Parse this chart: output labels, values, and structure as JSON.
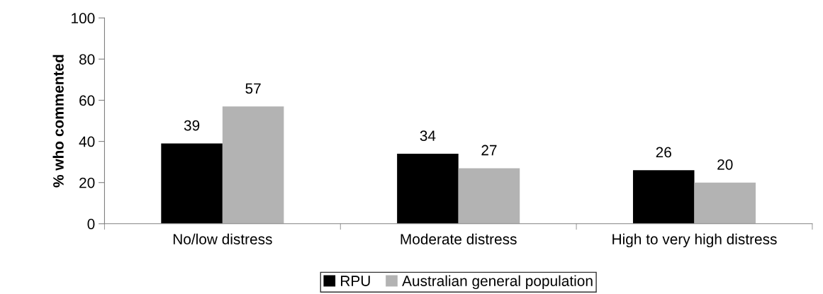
{
  "chart_data": {
    "type": "bar",
    "ylabel": "% who commented",
    "categories": [
      "No/low distress",
      "Moderate distress",
      "High to very high distress"
    ],
    "series": [
      {
        "name": "RPU",
        "color": "#000000",
        "values": [
          39,
          34,
          26
        ]
      },
      {
        "name": "Australian general population",
        "color": "#b3b3b3",
        "values": [
          57,
          27,
          20
        ]
      }
    ],
    "ylim": [
      0,
      100
    ],
    "yticks": [
      0,
      20,
      40,
      60,
      80,
      100
    ],
    "data_labels": true,
    "legend": "bottom",
    "grid": false
  }
}
